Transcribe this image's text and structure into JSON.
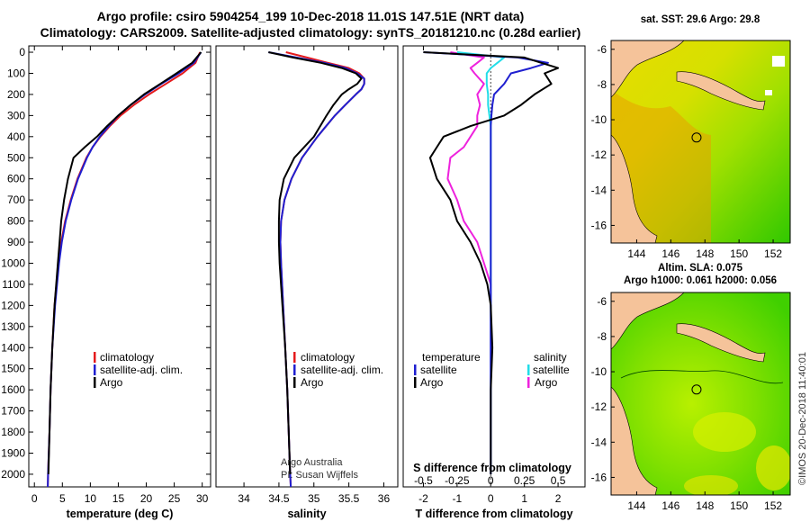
{
  "titles": {
    "line1": "Argo profile: csiro 5904254_199 10-Dec-2018 11.01S 147.51E (NRT data)",
    "line2": "Climatology: CARS2009. Satellite-adjusted climatology: synTS_20181210.nc (0.28d earlier)"
  },
  "timestamp": "©IMOS 20-Dec-2018 11:40:01",
  "credit": {
    "line1": "Argo Australia",
    "line2": "PI: Susan Wijffels"
  },
  "colors": {
    "climatology": "#e41a1c",
    "satellite": "#1f1fd0",
    "argo": "#000000",
    "sat_salinity": "#22dde8",
    "argo_salinity": "#ee22dd",
    "land": "#f5c39a"
  },
  "depth_ticks": [
    0,
    100,
    200,
    300,
    400,
    500,
    600,
    700,
    800,
    900,
    1000,
    1100,
    1200,
    1300,
    1400,
    1500,
    1600,
    1700,
    1800,
    1900,
    2000
  ],
  "chart_data": [
    {
      "type": "line",
      "id": "temperature",
      "xlabel": "temperature (deg C)",
      "xlim": [
        -1,
        31.5
      ],
      "ylim": [
        2060,
        -30
      ],
      "xticks": [
        0,
        5,
        10,
        15,
        20,
        25,
        30
      ],
      "xtick_labels": [
        "0",
        "5",
        "10",
        "15",
        "20",
        "25",
        "30"
      ],
      "legend": [
        "climatology",
        "satellite-adj. clim.",
        "Argo"
      ],
      "depth": [
        0,
        50,
        100,
        150,
        200,
        250,
        300,
        350,
        400,
        450,
        500,
        600,
        700,
        800,
        900,
        1000,
        1200,
        1400,
        1600,
        1800,
        2000,
        2060
      ],
      "series": [
        {
          "name": "climatology",
          "values": [
            29.6,
            28.8,
            26.5,
            23.5,
            20.5,
            17.8,
            15.4,
            13.5,
            11.8,
            10.4,
            9.3,
            7.7,
            6.5,
            5.5,
            4.8,
            4.3,
            3.6,
            3.2,
            2.9,
            2.7,
            2.45,
            2.4
          ]
        },
        {
          "name": "satellite-adj. clim.",
          "values": [
            29.8,
            28.5,
            25.8,
            22.7,
            19.8,
            17.2,
            15.0,
            13.3,
            11.7,
            10.4,
            9.4,
            7.8,
            6.6,
            5.6,
            4.9,
            4.4,
            3.7,
            3.2,
            2.9,
            2.7,
            2.45,
            2.4
          ]
        },
        {
          "name": "Argo",
          "values": [
            29.8,
            28.2,
            25.4,
            22.5,
            19.6,
            17.2,
            15.0,
            13.0,
            11.2,
            9.0,
            7.0,
            6.0,
            5.3,
            4.8,
            4.5,
            4.2,
            3.6,
            3.2,
            2.9,
            2.7,
            2.5
          ]
        }
      ]
    },
    {
      "type": "line",
      "id": "salinity",
      "xlabel": "salinity",
      "xlim": [
        33.6,
        36.2
      ],
      "ylim": [
        2060,
        -30
      ],
      "xticks": [
        34,
        34.5,
        35,
        35.5,
        36
      ],
      "xtick_labels": [
        "34",
        "34.5",
        "35",
        "35.5",
        "36"
      ],
      "legend": [
        "climatology",
        "satellite-adj. clim.",
        "Argo"
      ],
      "depth": [
        0,
        25,
        50,
        75,
        100,
        125,
        150,
        175,
        200,
        250,
        300,
        400,
        500,
        600,
        700,
        800,
        900,
        1000,
        1200,
        1400,
        1600,
        1800,
        2000,
        2060
      ],
      "series": [
        {
          "name": "climatology",
          "values": [
            34.6,
            34.9,
            35.2,
            35.5,
            35.65,
            35.72,
            35.72,
            35.68,
            35.6,
            35.45,
            35.3,
            35.05,
            34.83,
            34.68,
            34.58,
            34.53,
            34.52,
            34.53,
            34.56,
            34.59,
            34.62,
            34.64,
            34.66,
            34.67
          ]
        },
        {
          "name": "satellite-adj. clim.",
          "values": [
            34.35,
            34.75,
            35.15,
            35.45,
            35.62,
            35.72,
            35.72,
            35.68,
            35.6,
            35.45,
            35.3,
            35.05,
            34.83,
            34.68,
            34.58,
            34.53,
            34.52,
            34.53,
            34.56,
            34.59,
            34.62,
            34.64,
            34.66,
            34.67
          ]
        },
        {
          "name": "Argo",
          "values": [
            34.35,
            34.7,
            35.1,
            35.4,
            35.6,
            35.68,
            35.62,
            35.5,
            35.4,
            35.28,
            35.18,
            35.0,
            34.72,
            34.57,
            34.51,
            34.5,
            34.5,
            34.51,
            34.55,
            34.59,
            34.62,
            34.64,
            34.66
          ]
        }
      ]
    },
    {
      "type": "line",
      "id": "difference",
      "xlabel": "T difference from climatology",
      "xlabel2": "S difference from climatology",
      "xlim": [
        -2.6,
        2.8
      ],
      "ylim": [
        2060,
        -30
      ],
      "xticks": [
        -2,
        -1,
        0,
        1,
        2
      ],
      "xtick_labels": [
        "-2",
        "-1",
        "0",
        "1",
        "2"
      ],
      "s_xticks": [
        -0.5,
        -0.25,
        0,
        0.25,
        0.5
      ],
      "s_xtick_labels": [
        "-0.5",
        "-0.25",
        "0",
        "0.25",
        "0.5"
      ],
      "legend_temperature": {
        "title": "temperature",
        "items": [
          "satellite",
          "Argo"
        ]
      },
      "legend_salinity": {
        "title": "salinity",
        "items": [
          "satellite",
          "Argo"
        ]
      },
      "depth": [
        0,
        25,
        50,
        75,
        100,
        150,
        200,
        250,
        300,
        350,
        400,
        450,
        500,
        600,
        700,
        800,
        900,
        1000,
        1100,
        1200,
        1400,
        1600,
        1800,
        2000
      ],
      "series": [
        {
          "name": "T satellite",
          "values": [
            -2,
            0.8,
            1.7,
            1.2,
            0.6,
            0.4,
            0.1,
            0.05,
            0.02,
            0,
            0,
            0,
            0,
            0,
            0,
            0,
            0,
            0,
            0,
            0,
            0,
            0,
            0,
            0
          ]
        },
        {
          "name": "T Argo",
          "values": [
            -2,
            1.0,
            1.5,
            2.0,
            1.6,
            1.8,
            1.3,
            0.9,
            0.4,
            -0.6,
            -1.4,
            -1.6,
            -1.8,
            -1.6,
            -1.2,
            -1.0,
            -0.6,
            -0.3,
            -0.1,
            0,
            0.05,
            0,
            0,
            0
          ]
        },
        {
          "name": "S satellite",
          "values": [
            -0.25,
            0.1,
            0.05,
            0.0,
            -0.03,
            -0.03,
            -0.02,
            -0.02,
            -0.01,
            0,
            0,
            0,
            0,
            0,
            0,
            0,
            0,
            0,
            0,
            0,
            0,
            0,
            0,
            0
          ]
        },
        {
          "name": "S Argo",
          "values": [
            -0.3,
            -0.05,
            -0.1,
            -0.15,
            -0.12,
            -0.05,
            -0.1,
            -0.08,
            -0.1,
            -0.1,
            -0.15,
            -0.2,
            -0.3,
            -0.32,
            -0.25,
            -0.2,
            -0.1,
            -0.05,
            0,
            0,
            0,
            0,
            0,
            0
          ]
        }
      ]
    },
    {
      "type": "heatmap",
      "id": "sst_map",
      "title": "sat. SST: 29.6 Argo: 29.8",
      "xlim": [
        142.5,
        153
      ],
      "ylim": [
        -17,
        -5.5
      ],
      "xticks": [
        144,
        146,
        148,
        150,
        152
      ],
      "xtick_labels": [
        "144",
        "146",
        "148",
        "150",
        "152"
      ],
      "yticks": [
        -6,
        -8,
        -10,
        -12,
        -14,
        -16
      ],
      "ytick_labels": [
        "-6",
        "-8",
        "-10",
        "-12",
        "-14",
        "-16"
      ],
      "marker": {
        "lon": 147.51,
        "lat": -11.01
      }
    },
    {
      "type": "heatmap",
      "id": "sla_map",
      "title": "Altim. SLA: 0.075",
      "subtitle": "Argo h1000: 0.061 h2000: 0.056",
      "xlim": [
        142.5,
        153
      ],
      "ylim": [
        -17,
        -5.5
      ],
      "xticks": [
        144,
        146,
        148,
        150,
        152
      ],
      "xtick_labels": [
        "144",
        "146",
        "148",
        "150",
        "152"
      ],
      "yticks": [
        -6,
        -8,
        -10,
        -12,
        -14,
        -16
      ],
      "ytick_labels": [
        "-6",
        "-8",
        "-10",
        "-12",
        "-14",
        "-16"
      ],
      "marker": {
        "lon": 147.51,
        "lat": -11.01
      }
    }
  ]
}
